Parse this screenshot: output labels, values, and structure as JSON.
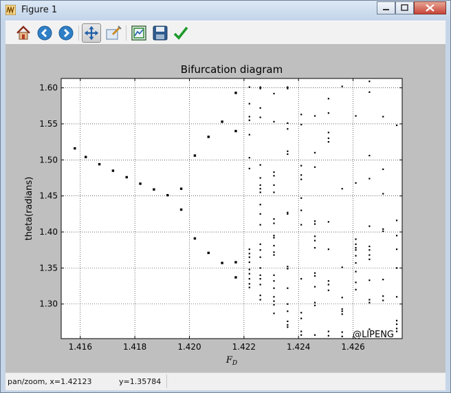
{
  "window": {
    "title": "Figure 1",
    "accent": "#c6d6e8"
  },
  "toolbar": {
    "buttons": [
      {
        "icon": "home-icon",
        "name": "home-button"
      },
      {
        "icon": "arrow-left-icon",
        "name": "back-button"
      },
      {
        "icon": "arrow-right-icon",
        "name": "forward-button"
      },
      {
        "icon": "pan-icon",
        "name": "pan-button",
        "active": true
      },
      {
        "icon": "zoom-rect-icon",
        "name": "zoom-button"
      },
      {
        "icon": "subplots-icon",
        "name": "subplots-button"
      },
      {
        "icon": "save-icon",
        "name": "save-button"
      },
      {
        "icon": "check-icon",
        "name": "edit-params-button"
      }
    ]
  },
  "status": {
    "x_readout": "pan/zoom, x=1.42123",
    "y_readout": "y=1.35784"
  },
  "chart_data": {
    "type": "scatter",
    "title": "Bifurcation diagram",
    "xlabel": "F_D",
    "ylabel": "theta(radians)",
    "xlim": [
      1.4153,
      1.4278
    ],
    "ylim": [
      1.252,
      1.613
    ],
    "xticks": [
      "1.416",
      "1.418",
      "1.420",
      "1.422",
      "1.424",
      "1.426"
    ],
    "xtick_values": [
      1.416,
      1.418,
      1.42,
      1.422,
      1.424,
      1.426
    ],
    "yticks": [
      "1.30",
      "1.35",
      "1.40",
      "1.45",
      "1.50",
      "1.55",
      "1.60"
    ],
    "ytick_values": [
      1.3,
      1.35,
      1.4,
      1.45,
      1.5,
      1.55,
      1.6
    ],
    "grid": true,
    "annotation": "@LIPENG",
    "marker_color": "#000000",
    "points": [
      [
        1.4158,
        1.516
      ],
      [
        1.4162,
        1.504
      ],
      [
        1.4167,
        1.494
      ],
      [
        1.4172,
        1.485
      ],
      [
        1.4177,
        1.476
      ],
      [
        1.4182,
        1.467
      ],
      [
        1.4187,
        1.459
      ],
      [
        1.4192,
        1.451
      ],
      [
        1.4197,
        1.46
      ],
      [
        1.4197,
        1.431
      ],
      [
        1.4202,
        1.506
      ],
      [
        1.4202,
        1.391
      ],
      [
        1.4207,
        1.532
      ],
      [
        1.4207,
        1.371
      ],
      [
        1.4212,
        1.553
      ],
      [
        1.4212,
        1.357
      ],
      [
        1.4217,
        1.593
      ],
      [
        1.4217,
        1.54
      ],
      [
        1.4217,
        1.358
      ],
      [
        1.4217,
        1.337
      ],
      [
        1.4222,
        1.601
      ],
      [
        1.4222,
        1.578
      ],
      [
        1.4222,
        1.56
      ],
      [
        1.4222,
        1.555
      ],
      [
        1.4222,
        1.535
      ],
      [
        1.4222,
        1.503
      ],
      [
        1.4222,
        1.488
      ],
      [
        1.4222,
        1.376
      ],
      [
        1.4222,
        1.37
      ],
      [
        1.4222,
        1.365
      ],
      [
        1.4222,
        1.358
      ],
      [
        1.4222,
        1.348
      ],
      [
        1.4222,
        1.342
      ],
      [
        1.4222,
        1.335
      ],
      [
        1.4222,
        1.328
      ],
      [
        1.4222,
        1.323
      ],
      [
        1.4226,
        1.601
      ],
      [
        1.4226,
        1.599
      ],
      [
        1.4226,
        1.572
      ],
      [
        1.4226,
        1.559
      ],
      [
        1.4226,
        1.493
      ],
      [
        1.4226,
        1.475
      ],
      [
        1.4226,
        1.465
      ],
      [
        1.4226,
        1.46
      ],
      [
        1.4226,
        1.455
      ],
      [
        1.4226,
        1.438
      ],
      [
        1.4226,
        1.425
      ],
      [
        1.4226,
        1.41
      ],
      [
        1.4226,
        1.383
      ],
      [
        1.4226,
        1.375
      ],
      [
        1.4226,
        1.365
      ],
      [
        1.4226,
        1.35
      ],
      [
        1.4226,
        1.34
      ],
      [
        1.4226,
        1.335
      ],
      [
        1.4226,
        1.327
      ],
      [
        1.4226,
        1.312
      ],
      [
        1.4226,
        1.306
      ],
      [
        1.4231,
        1.592
      ],
      [
        1.4231,
        1.553
      ],
      [
        1.4231,
        1.483
      ],
      [
        1.4231,
        1.478
      ],
      [
        1.4231,
        1.465
      ],
      [
        1.4231,
        1.455
      ],
      [
        1.4231,
        1.418
      ],
      [
        1.4231,
        1.412
      ],
      [
        1.4231,
        1.395
      ],
      [
        1.4231,
        1.392
      ],
      [
        1.4231,
        1.381
      ],
      [
        1.4231,
        1.372
      ],
      [
        1.4231,
        1.368
      ],
      [
        1.4231,
        1.34
      ],
      [
        1.4231,
        1.332
      ],
      [
        1.4231,
        1.322
      ],
      [
        1.4231,
        1.31
      ],
      [
        1.4231,
        1.304
      ],
      [
        1.4231,
        1.299
      ],
      [
        1.4231,
        1.287
      ],
      [
        1.4236,
        1.601
      ],
      [
        1.4236,
        1.599
      ],
      [
        1.4236,
        1.551
      ],
      [
        1.4236,
        1.543
      ],
      [
        1.4236,
        1.512
      ],
      [
        1.4236,
        1.508
      ],
      [
        1.4236,
        1.427
      ],
      [
        1.4236,
        1.425
      ],
      [
        1.4236,
        1.352
      ],
      [
        1.4236,
        1.349
      ],
      [
        1.4236,
        1.322
      ],
      [
        1.4236,
        1.3
      ],
      [
        1.4236,
        1.29
      ],
      [
        1.4236,
        1.276
      ],
      [
        1.4236,
        1.271
      ],
      [
        1.4236,
        1.268
      ],
      [
        1.4241,
        1.563
      ],
      [
        1.4241,
        1.549
      ],
      [
        1.4241,
        1.492
      ],
      [
        1.4241,
        1.479
      ],
      [
        1.4241,
        1.473
      ],
      [
        1.4241,
        1.447
      ],
      [
        1.4241,
        1.43
      ],
      [
        1.4241,
        1.41
      ],
      [
        1.4241,
        1.335
      ],
      [
        1.4241,
        1.288
      ],
      [
        1.4241,
        1.28
      ],
      [
        1.4241,
        1.262
      ],
      [
        1.4241,
        1.257
      ],
      [
        1.4246,
        1.561
      ],
      [
        1.4246,
        1.51
      ],
      [
        1.4246,
        1.49
      ],
      [
        1.4246,
        1.415
      ],
      [
        1.4246,
        1.411
      ],
      [
        1.4246,
        1.394
      ],
      [
        1.4246,
        1.388
      ],
      [
        1.4246,
        1.378
      ],
      [
        1.4246,
        1.343
      ],
      [
        1.4246,
        1.339
      ],
      [
        1.4246,
        1.324
      ],
      [
        1.4246,
        1.302
      ],
      [
        1.4246,
        1.298
      ],
      [
        1.4246,
        1.257
      ],
      [
        1.4251,
        1.585
      ],
      [
        1.4251,
        1.565
      ],
      [
        1.4251,
        1.538
      ],
      [
        1.4251,
        1.53
      ],
      [
        1.4251,
        1.525
      ],
      [
        1.4251,
        1.414
      ],
      [
        1.4251,
        1.376
      ],
      [
        1.4251,
        1.332
      ],
      [
        1.4251,
        1.327
      ],
      [
        1.4251,
        1.319
      ],
      [
        1.4251,
        1.262
      ],
      [
        1.4251,
        1.256
      ],
      [
        1.4256,
        1.602
      ],
      [
        1.4256,
        1.46
      ],
      [
        1.4256,
        1.351
      ],
      [
        1.4256,
        1.309
      ],
      [
        1.4256,
        1.293
      ],
      [
        1.4256,
        1.29
      ],
      [
        1.4256,
        1.286
      ],
      [
        1.4256,
        1.261
      ],
      [
        1.4256,
        1.255
      ],
      [
        1.4261,
        1.561
      ],
      [
        1.4261,
        1.468
      ],
      [
        1.4261,
        1.39
      ],
      [
        1.4261,
        1.383
      ],
      [
        1.4261,
        1.378
      ],
      [
        1.4261,
        1.375
      ],
      [
        1.4261,
        1.367
      ],
      [
        1.4261,
        1.357
      ],
      [
        1.4261,
        1.345
      ],
      [
        1.4261,
        1.33
      ],
      [
        1.4261,
        1.32
      ],
      [
        1.4266,
        1.609
      ],
      [
        1.4266,
        1.594
      ],
      [
        1.4266,
        1.506
      ],
      [
        1.4266,
        1.474
      ],
      [
        1.4266,
        1.408
      ],
      [
        1.4266,
        1.38
      ],
      [
        1.4266,
        1.375
      ],
      [
        1.4266,
        1.368
      ],
      [
        1.4266,
        1.362
      ],
      [
        1.4266,
        1.333
      ],
      [
        1.4266,
        1.306
      ],
      [
        1.4266,
        1.302
      ],
      [
        1.4266,
        1.265
      ],
      [
        1.4271,
        1.56
      ],
      [
        1.4271,
        1.487
      ],
      [
        1.4271,
        1.453
      ],
      [
        1.4271,
        1.404
      ],
      [
        1.4271,
        1.401
      ],
      [
        1.4271,
        1.334
      ],
      [
        1.4271,
        1.311
      ],
      [
        1.4271,
        1.305
      ],
      [
        1.4276,
        1.548
      ],
      [
        1.4276,
        1.416
      ],
      [
        1.4276,
        1.395
      ],
      [
        1.4276,
        1.376
      ],
      [
        1.4276,
        1.35
      ],
      [
        1.4276,
        1.31
      ],
      [
        1.4276,
        1.277
      ],
      [
        1.4276,
        1.272
      ],
      [
        1.4276,
        1.266
      ],
      [
        1.4276,
        1.262
      ]
    ]
  }
}
